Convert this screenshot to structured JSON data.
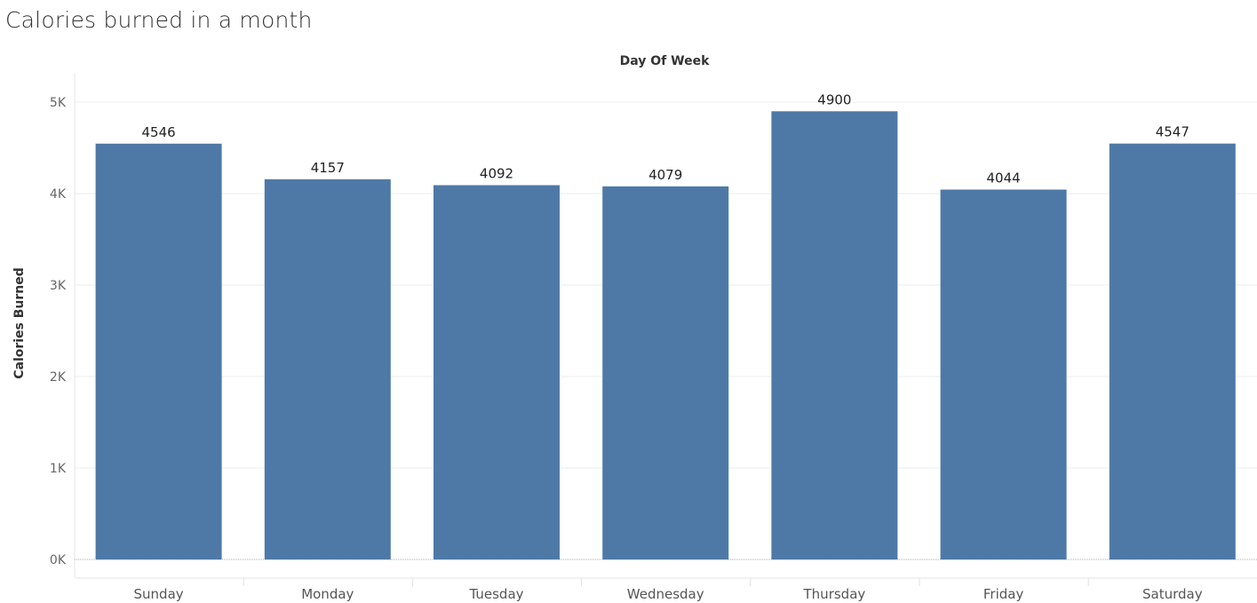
{
  "chart_data": {
    "type": "bar",
    "title": "Calories burned in a month",
    "column_header": "Day Of Week",
    "xlabel": "",
    "ylabel": "Calories Burned",
    "categories": [
      "Sunday",
      "Monday",
      "Tuesday",
      "Wednesday",
      "Thursday",
      "Friday",
      "Saturday"
    ],
    "values": [
      4546,
      4157,
      4092,
      4079,
      4900,
      4044,
      4547
    ],
    "data_labels": [
      "4546",
      "4157",
      "4092",
      "4079",
      "4900",
      "4044",
      "4547"
    ],
    "ylim": [
      0,
      5000
    ],
    "yticks": [
      0,
      1000,
      2000,
      3000,
      4000,
      5000
    ],
    "ytick_labels": [
      "0K",
      "1K",
      "2K",
      "3K",
      "4K",
      "5K"
    ],
    "grid": true,
    "legend": "none",
    "bar_color": "#4e79a7"
  }
}
